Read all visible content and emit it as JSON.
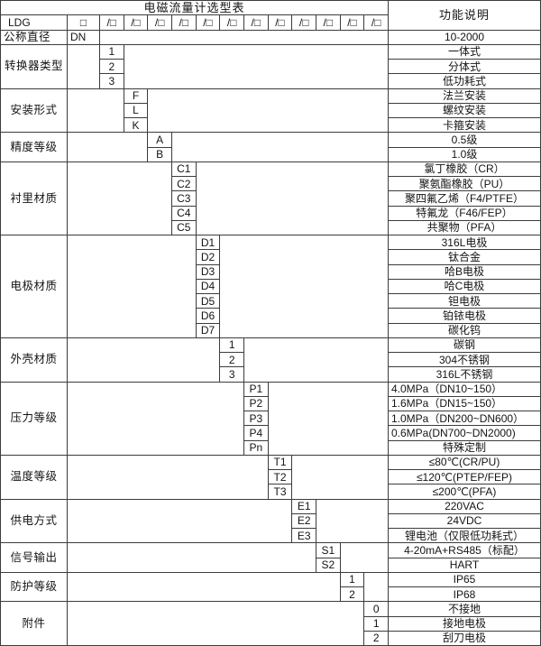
{
  "title": "电磁流量计选型表",
  "right_header": "功能说明",
  "model_code_row": {
    "prefix": "LDG",
    "base_code": "□",
    "segment_code": "/□",
    "segment_count": 12
  },
  "diameter_row": {
    "label": "公称直径",
    "code": "DN",
    "desc": "10-2000"
  },
  "groups": [
    {
      "label": "转换器类型",
      "col": 1,
      "options": [
        {
          "code": "1",
          "desc": "一体式"
        },
        {
          "code": "2",
          "desc": "分体式"
        },
        {
          "code": "3",
          "desc": "低功耗式"
        }
      ]
    },
    {
      "label": "安装形式",
      "col": 2,
      "options": [
        {
          "code": "F",
          "desc": "法兰安装"
        },
        {
          "code": "L",
          "desc": "螺纹安装"
        },
        {
          "code": "K",
          "desc": "卡箍安装"
        }
      ]
    },
    {
      "label": "精度等级",
      "col": 3,
      "options": [
        {
          "code": "A",
          "desc": "0.5级"
        },
        {
          "code": "B",
          "desc": "1.0级"
        }
      ]
    },
    {
      "label": "衬里材质",
      "col": 4,
      "options": [
        {
          "code": "C1",
          "desc": "氯丁橡胶（CR）"
        },
        {
          "code": "C2",
          "desc": "聚氨酯橡胶（PU）"
        },
        {
          "code": "C3",
          "desc": "聚四氟乙烯（F4/PTFE）"
        },
        {
          "code": "C4",
          "desc": "特氟龙（F46/FEP）"
        },
        {
          "code": "C5",
          "desc": "共聚物（PFA）"
        }
      ]
    },
    {
      "label": "电极材质",
      "col": 5,
      "options": [
        {
          "code": "D1",
          "desc": "316L电极"
        },
        {
          "code": "D2",
          "desc": "钛合金"
        },
        {
          "code": "D3",
          "desc": "哈B电极"
        },
        {
          "code": "D4",
          "desc": "哈C电极"
        },
        {
          "code": "D5",
          "desc": "钽电极"
        },
        {
          "code": "D6",
          "desc": "铂铱电极"
        },
        {
          "code": "D7",
          "desc": "碳化钨"
        }
      ]
    },
    {
      "label": "外壳材质",
      "col": 6,
      "options": [
        {
          "code": "1",
          "desc": "碳钢"
        },
        {
          "code": "2",
          "desc": "304不锈钢"
        },
        {
          "code": "3",
          "desc": "316L不锈钢"
        }
      ]
    },
    {
      "label": "压力等级",
      "col": 7,
      "options": [
        {
          "code": "P1",
          "desc": "4.0MPa（DN10~150）",
          "align": "left"
        },
        {
          "code": "P2",
          "desc": "1.6MPa（DN15~150）",
          "align": "left"
        },
        {
          "code": "P3",
          "desc": "1.0MPa（DN200~DN600）",
          "align": "left"
        },
        {
          "code": "P4",
          "desc": "0.6MPa(DN700~DN2000)",
          "align": "left"
        },
        {
          "code": "Pn",
          "desc": "特殊定制"
        }
      ]
    },
    {
      "label": "温度等级",
      "col": 8,
      "options": [
        {
          "code": "T1",
          "desc": "≤80℃(CR/PU)"
        },
        {
          "code": "T2",
          "desc": "≤120℃(PTEP/FEP)"
        },
        {
          "code": "T3",
          "desc": "≤200℃(PFA)"
        }
      ]
    },
    {
      "label": "供电方式",
      "col": 9,
      "options": [
        {
          "code": "E1",
          "desc": "220VAC"
        },
        {
          "code": "E2",
          "desc": "24VDC"
        },
        {
          "code": "E3",
          "desc": "锂电池（仅限低功耗式）"
        }
      ]
    },
    {
      "label": "信号输出",
      "col": 10,
      "options": [
        {
          "code": "S1",
          "desc": "4-20mA+RS485（标配）"
        },
        {
          "code": "S2",
          "desc": "HART"
        }
      ]
    },
    {
      "label": "防护等级",
      "col": 11,
      "options": [
        {
          "code": "1",
          "desc": "IP65"
        },
        {
          "code": "2",
          "desc": "IP68"
        }
      ]
    },
    {
      "label": "附件",
      "col": 12,
      "options": [
        {
          "code": "0",
          "desc": "不接地"
        },
        {
          "code": "1",
          "desc": "接地电极"
        },
        {
          "code": "2",
          "desc": "刮刀电极"
        }
      ]
    }
  ],
  "colors": {
    "border": "#3c3c3c",
    "text": "#141414",
    "background": "#ffffff"
  }
}
